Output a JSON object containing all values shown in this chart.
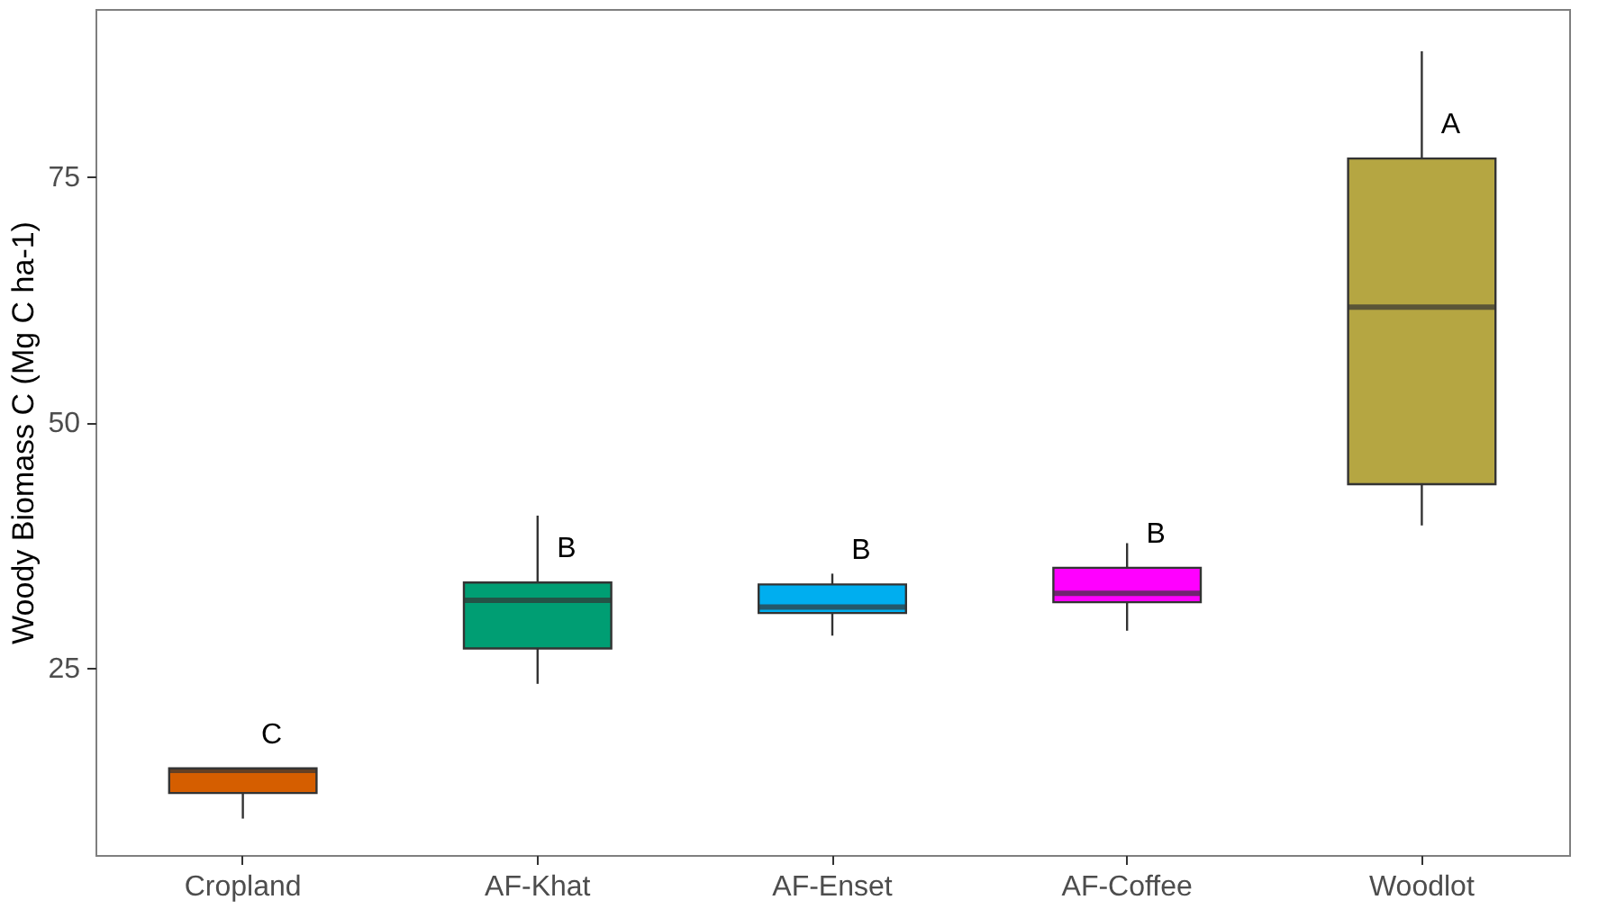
{
  "chart_data": {
    "type": "box",
    "ylabel": "Woody Biomass C (Mg C ha-1)",
    "categories": [
      "Cropland",
      "AF-Khat",
      "AF-Enset",
      "AF-Coffee",
      "Woodlot"
    ],
    "boxes": [
      {
        "low": 9.7,
        "q1": 12.3,
        "median": 14.6,
        "q3": 14.8,
        "high": 14.8
      },
      {
        "low": 23.4,
        "q1": 27.0,
        "median": 31.9,
        "q3": 33.7,
        "high": 40.5
      },
      {
        "low": 28.3,
        "q1": 30.6,
        "median": 31.2,
        "q3": 33.5,
        "high": 34.6
      },
      {
        "low": 28.8,
        "q1": 31.7,
        "median": 32.6,
        "q3": 35.2,
        "high": 37.7
      },
      {
        "low": 39.5,
        "q1": 43.7,
        "median": 61.7,
        "q3": 76.8,
        "high": 87.7
      }
    ],
    "colors": [
      "#d55e00",
      "#009e73",
      "#00aeef",
      "#ff00ff",
      "#b5a642"
    ],
    "ylim": [
      6,
      92
    ],
    "yticks": [
      25,
      50,
      75
    ],
    "grid": false,
    "annotations": [
      "C",
      "B",
      "B",
      "B",
      "A"
    ]
  }
}
